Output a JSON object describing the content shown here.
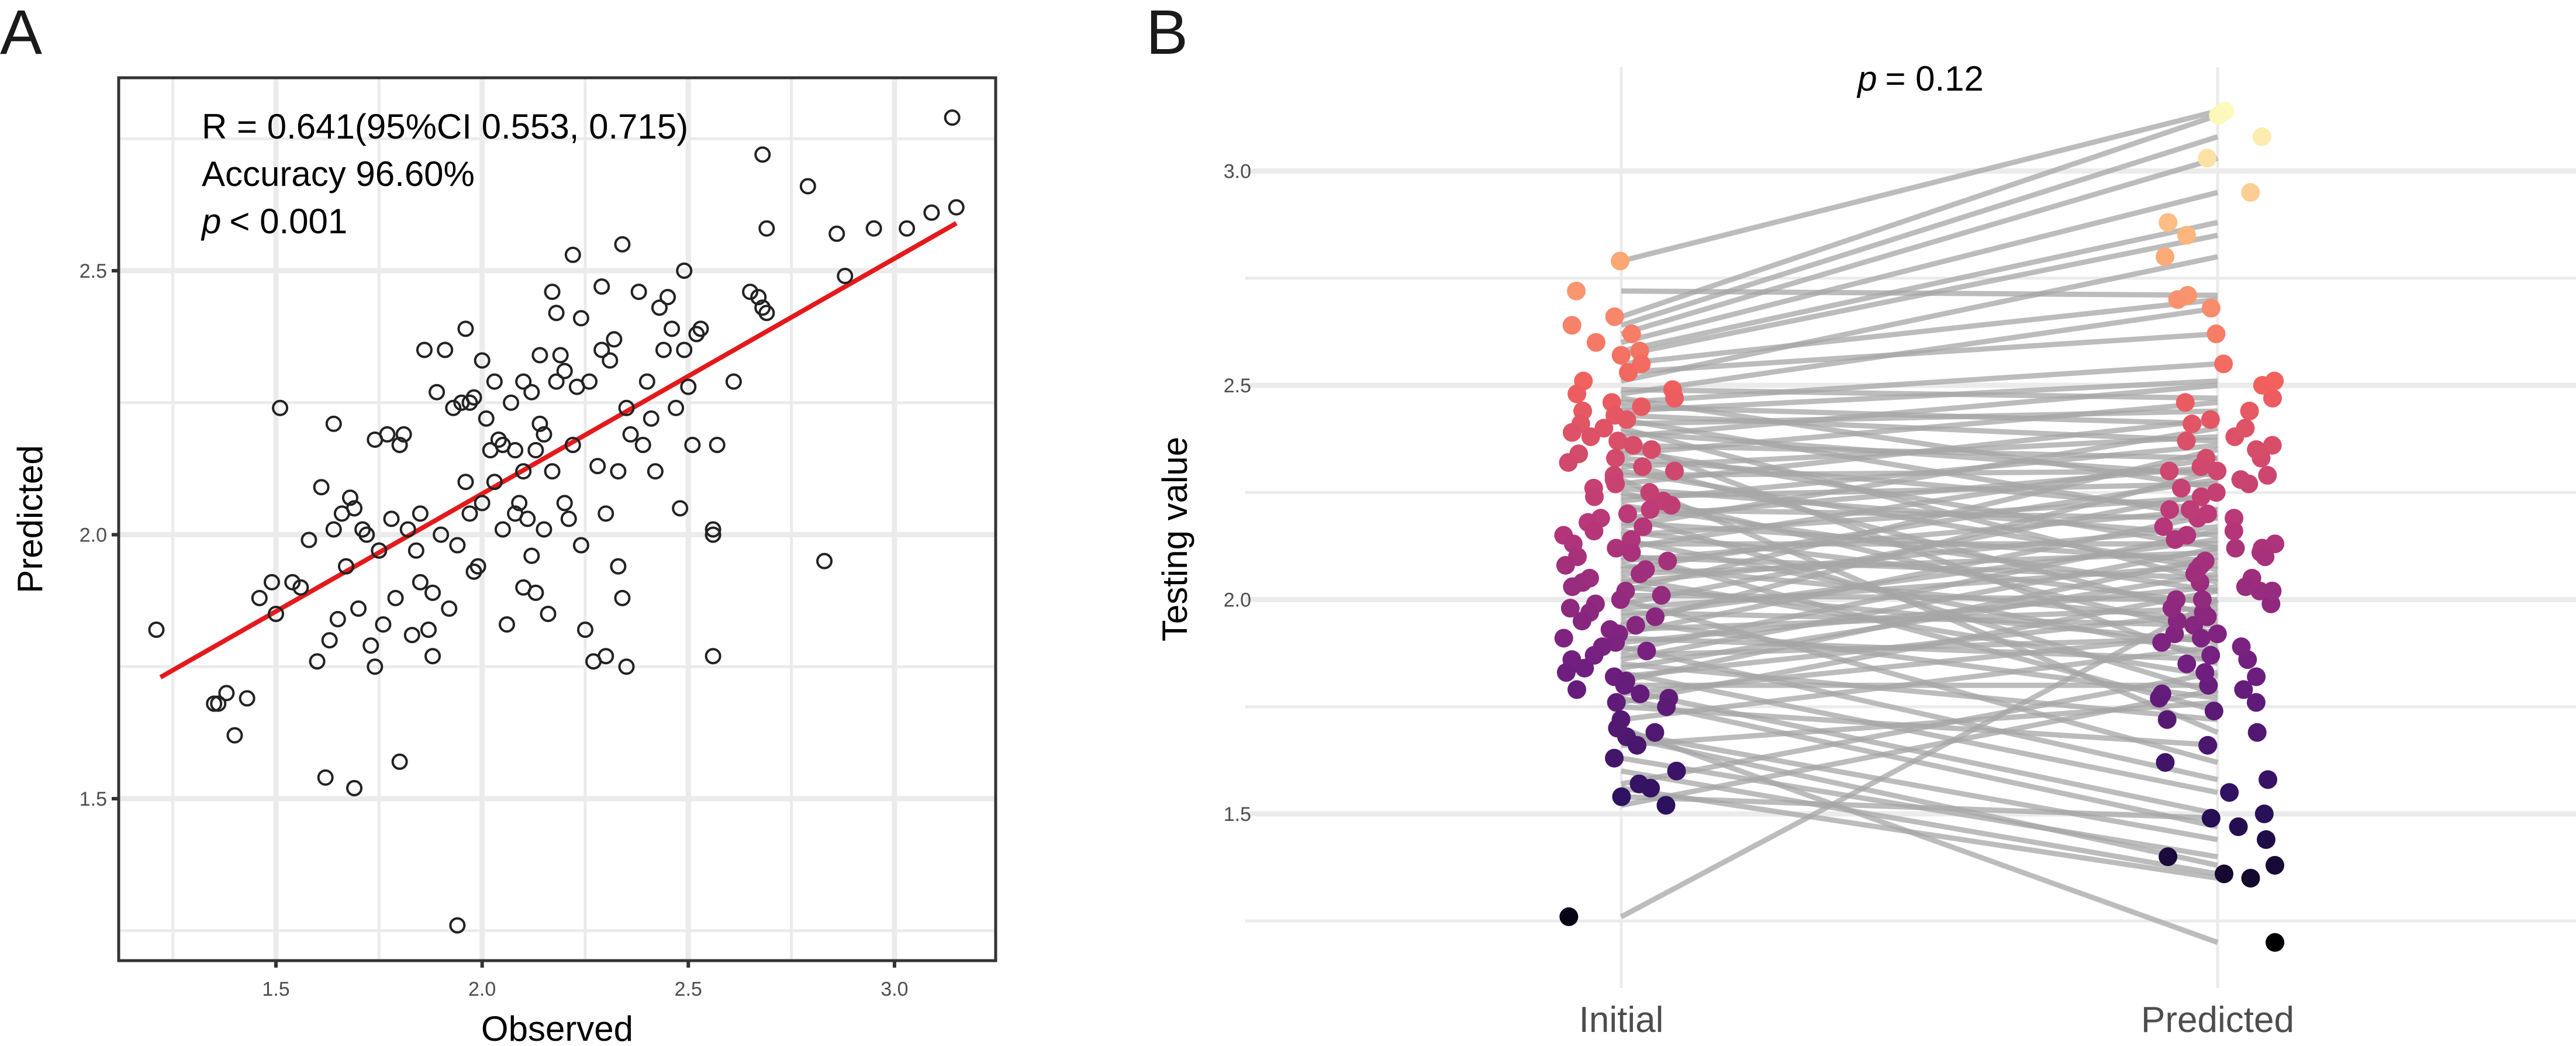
{
  "figure": {
    "panels": [
      "A",
      "B"
    ]
  },
  "chart_data": [
    {
      "panel": "A",
      "type": "scatter",
      "title": "",
      "xlabel": "Observed",
      "ylabel": "Predicted",
      "xlim": [
        1.17,
        3.23
      ],
      "ylim": [
        1.2,
        2.87
      ],
      "xticks": [
        "1.5",
        "2.0",
        "2.5",
        "3.0"
      ],
      "yticks": [
        "1.5",
        "2.0",
        "2.5"
      ],
      "grid": true,
      "marker": "open-circle",
      "fit_line": {
        "color": "#e31a1c",
        "x": [
          1.22,
          3.15
        ],
        "y": [
          1.73,
          2.59
        ]
      },
      "annotations": [
        "R = 0.641(95%CI 0.553, 0.715)",
        "Accuracy 96.60%",
        "< 0.001"
      ],
      "annotation_p_symbol": "p",
      "points": [
        [
          1.21,
          1.82
        ],
        [
          1.35,
          1.68
        ],
        [
          1.36,
          1.68
        ],
        [
          1.38,
          1.7
        ],
        [
          1.4,
          1.62
        ],
        [
          1.43,
          1.69
        ],
        [
          1.46,
          1.88
        ],
        [
          1.49,
          1.91
        ],
        [
          1.5,
          1.85
        ],
        [
          1.51,
          2.24
        ],
        [
          1.54,
          1.91
        ],
        [
          1.56,
          1.9
        ],
        [
          1.58,
          1.99
        ],
        [
          1.6,
          1.76
        ],
        [
          1.61,
          2.09
        ],
        [
          1.62,
          1.54
        ],
        [
          1.63,
          1.8
        ],
        [
          1.64,
          2.21
        ],
        [
          1.64,
          2.01
        ],
        [
          1.65,
          1.84
        ],
        [
          1.66,
          2.04
        ],
        [
          1.67,
          1.94
        ],
        [
          1.68,
          2.07
        ],
        [
          1.69,
          1.52
        ],
        [
          1.69,
          2.05
        ],
        [
          1.7,
          1.86
        ],
        [
          1.71,
          2.01
        ],
        [
          1.72,
          2.0
        ],
        [
          1.73,
          1.79
        ],
        [
          1.74,
          1.75
        ],
        [
          1.74,
          2.18
        ],
        [
          1.75,
          1.97
        ],
        [
          1.76,
          1.83
        ],
        [
          1.77,
          2.19
        ],
        [
          1.78,
          2.03
        ],
        [
          1.79,
          1.88
        ],
        [
          1.8,
          1.57
        ],
        [
          1.8,
          2.17
        ],
        [
          1.81,
          2.19
        ],
        [
          1.82,
          2.01
        ],
        [
          1.83,
          1.81
        ],
        [
          1.84,
          1.97
        ],
        [
          1.85,
          2.04
        ],
        [
          1.85,
          1.91
        ],
        [
          1.86,
          2.35
        ],
        [
          1.87,
          1.82
        ],
        [
          1.88,
          1.77
        ],
        [
          1.88,
          1.89
        ],
        [
          1.89,
          2.27
        ],
        [
          1.9,
          2.0
        ],
        [
          1.91,
          2.35
        ],
        [
          1.92,
          1.86
        ],
        [
          1.93,
          2.24
        ],
        [
          1.94,
          1.26
        ],
        [
          1.94,
          1.98
        ],
        [
          1.95,
          2.25
        ],
        [
          1.96,
          2.1
        ],
        [
          1.96,
          2.39
        ],
        [
          1.97,
          2.25
        ],
        [
          1.97,
          2.04
        ],
        [
          1.98,
          1.93
        ],
        [
          1.98,
          2.26
        ],
        [
          1.99,
          1.94
        ],
        [
          2.0,
          2.33
        ],
        [
          2.0,
          2.06
        ],
        [
          2.01,
          2.22
        ],
        [
          2.02,
          2.16
        ],
        [
          2.03,
          2.29
        ],
        [
          2.03,
          2.1
        ],
        [
          2.04,
          2.18
        ],
        [
          2.05,
          2.17
        ],
        [
          2.05,
          2.01
        ],
        [
          2.06,
          1.83
        ],
        [
          2.07,
          2.25
        ],
        [
          2.08,
          2.16
        ],
        [
          2.08,
          2.04
        ],
        [
          2.09,
          2.06
        ],
        [
          2.1,
          2.29
        ],
        [
          2.1,
          2.12
        ],
        [
          2.1,
          1.9
        ],
        [
          2.11,
          2.03
        ],
        [
          2.12,
          2.27
        ],
        [
          2.12,
          1.96
        ],
        [
          2.13,
          2.16
        ],
        [
          2.13,
          1.89
        ],
        [
          2.14,
          2.34
        ],
        [
          2.14,
          2.21
        ],
        [
          2.15,
          2.19
        ],
        [
          2.15,
          2.01
        ],
        [
          2.16,
          1.85
        ],
        [
          2.17,
          2.46
        ],
        [
          2.17,
          2.12
        ],
        [
          2.18,
          2.42
        ],
        [
          2.18,
          2.29
        ],
        [
          2.19,
          2.34
        ],
        [
          2.2,
          2.06
        ],
        [
          2.2,
          2.31
        ],
        [
          2.21,
          2.03
        ],
        [
          2.22,
          2.53
        ],
        [
          2.22,
          2.17
        ],
        [
          2.23,
          2.28
        ],
        [
          2.24,
          2.41
        ],
        [
          2.24,
          1.98
        ],
        [
          2.25,
          1.82
        ],
        [
          2.26,
          2.29
        ],
        [
          2.27,
          1.76
        ],
        [
          2.28,
          2.13
        ],
        [
          2.29,
          2.47
        ],
        [
          2.29,
          2.35
        ],
        [
          2.3,
          1.77
        ],
        [
          2.3,
          2.04
        ],
        [
          2.31,
          2.33
        ],
        [
          2.32,
          2.37
        ],
        [
          2.33,
          1.94
        ],
        [
          2.33,
          2.12
        ],
        [
          2.34,
          2.55
        ],
        [
          2.34,
          1.88
        ],
        [
          2.35,
          2.24
        ],
        [
          2.35,
          1.75
        ],
        [
          2.36,
          2.19
        ],
        [
          2.38,
          2.46
        ],
        [
          2.39,
          2.17
        ],
        [
          2.4,
          2.29
        ],
        [
          2.41,
          2.22
        ],
        [
          2.42,
          2.12
        ],
        [
          2.43,
          2.43
        ],
        [
          2.44,
          2.35
        ],
        [
          2.45,
          2.45
        ],
        [
          2.46,
          2.39
        ],
        [
          2.47,
          2.24
        ],
        [
          2.48,
          2.05
        ],
        [
          2.49,
          2.5
        ],
        [
          2.49,
          2.35
        ],
        [
          2.5,
          2.28
        ],
        [
          2.51,
          2.17
        ],
        [
          2.52,
          2.38
        ],
        [
          2.53,
          2.39
        ],
        [
          2.56,
          2.0
        ],
        [
          2.56,
          2.01
        ],
        [
          2.56,
          1.77
        ],
        [
          2.57,
          2.17
        ],
        [
          2.61,
          2.29
        ],
        [
          2.65,
          2.46
        ],
        [
          2.67,
          2.45
        ],
        [
          2.68,
          2.43
        ],
        [
          2.69,
          2.42
        ],
        [
          2.68,
          2.72
        ],
        [
          2.69,
          2.58
        ],
        [
          2.79,
          2.66
        ],
        [
          2.83,
          1.95
        ],
        [
          2.86,
          2.57
        ],
        [
          2.88,
          2.49
        ],
        [
          2.95,
          2.58
        ],
        [
          3.03,
          2.58
        ],
        [
          3.09,
          2.61
        ],
        [
          3.14,
          2.79
        ],
        [
          3.15,
          2.62
        ]
      ]
    },
    {
      "panel": "B",
      "type": "line",
      "subtype": "paired-dot",
      "title": "",
      "xlabel": "",
      "ylabel": "Testing value",
      "categories": [
        "Initial",
        "Predicted"
      ],
      "ylim": [
        1.1,
        3.2
      ],
      "yticks": [
        "1.5",
        "2.0",
        "2.5",
        "3.0"
      ],
      "grid": true,
      "annotation": "= 0.12",
      "annotation_p_symbol": "p",
      "color_scale": {
        "name": "magma",
        "stops": [
          "#000004",
          "#2c115f",
          "#721f81",
          "#b73779",
          "#f1605d",
          "#feb078",
          "#fcfdbf"
        ],
        "domain": [
          1.2,
          3.15
        ]
      },
      "line_color": "#a6a6a6",
      "pairs": [
        [
          2.79,
          3.14
        ],
        [
          2.72,
          2.71
        ],
        [
          2.66,
          3.13
        ],
        [
          2.64,
          3.08
        ],
        [
          2.62,
          3.03
        ],
        [
          2.6,
          2.95
        ],
        [
          2.58,
          2.88
        ],
        [
          2.57,
          2.85
        ],
        [
          2.55,
          2.7
        ],
        [
          2.53,
          2.62
        ],
        [
          2.51,
          2.8
        ],
        [
          2.49,
          2.47
        ],
        [
          2.48,
          2.68
        ],
        [
          2.47,
          2.26
        ],
        [
          2.46,
          2.55
        ],
        [
          2.45,
          2.41
        ],
        [
          2.44,
          2.51
        ],
        [
          2.43,
          2.37
        ],
        [
          2.42,
          2.19
        ],
        [
          2.41,
          2.44
        ],
        [
          2.4,
          2.04
        ],
        [
          2.39,
          2.29
        ],
        [
          2.38,
          2.5
        ],
        [
          2.37,
          1.85
        ],
        [
          2.36,
          2.33
        ],
        [
          2.35,
          2.12
        ],
        [
          2.34,
          2.46
        ],
        [
          2.33,
          2.21
        ],
        [
          2.32,
          1.96
        ],
        [
          2.31,
          2.38
        ],
        [
          2.3,
          2.07
        ],
        [
          2.29,
          2.3
        ],
        [
          2.28,
          1.69
        ],
        [
          2.27,
          2.42
        ],
        [
          2.26,
          2.15
        ],
        [
          2.25,
          1.92
        ],
        [
          2.24,
          2.27
        ],
        [
          2.23,
          2.36
        ],
        [
          2.22,
          2.02
        ],
        [
          2.21,
          2.19
        ],
        [
          2.2,
          1.78
        ],
        [
          2.19,
          2.31
        ],
        [
          2.18,
          2.09
        ],
        [
          2.17,
          2.4
        ],
        [
          2.16,
          1.99
        ],
        [
          2.15,
          2.24
        ],
        [
          2.14,
          1.87
        ],
        [
          2.13,
          2.13
        ],
        [
          2.12,
          2.33
        ],
        [
          2.11,
          1.74
        ],
        [
          2.1,
          2.05
        ],
        [
          2.09,
          2.21
        ],
        [
          2.08,
          1.95
        ],
        [
          2.07,
          2.28
        ],
        [
          2.06,
          2.11
        ],
        [
          2.05,
          1.82
        ],
        [
          2.04,
          2.17
        ],
        [
          2.03,
          1.9
        ],
        [
          2.02,
          2.35
        ],
        [
          2.01,
          2.0
        ],
        [
          2.0,
          1.62
        ],
        [
          1.99,
          2.25
        ],
        [
          1.98,
          2.08
        ],
        [
          1.97,
          1.94
        ],
        [
          1.96,
          2.14
        ],
        [
          1.95,
          1.77
        ],
        [
          1.94,
          2.3
        ],
        [
          1.93,
          1.98
        ],
        [
          1.92,
          2.2
        ],
        [
          1.91,
          1.86
        ],
        [
          1.9,
          2.03
        ],
        [
          1.89,
          1.58
        ],
        [
          1.88,
          2.16
        ],
        [
          1.87,
          1.91
        ],
        [
          1.86,
          2.12
        ],
        [
          1.85,
          1.72
        ],
        [
          1.84,
          2.06
        ],
        [
          1.83,
          1.55
        ],
        [
          1.82,
          1.97
        ],
        [
          1.81,
          2.1
        ],
        [
          1.8,
          1.8
        ],
        [
          1.79,
          1.5
        ],
        [
          1.78,
          1.92
        ],
        [
          1.77,
          1.47
        ],
        [
          1.76,
          2.02
        ],
        [
          1.75,
          1.66
        ],
        [
          1.72,
          1.89
        ],
        [
          1.69,
          1.44
        ],
        [
          1.68,
          1.38
        ],
        [
          1.66,
          1.76
        ],
        [
          1.63,
          1.4
        ],
        [
          1.6,
          1.36
        ],
        [
          1.57,
          1.83
        ],
        [
          1.56,
          1.35
        ],
        [
          1.54,
          1.49
        ],
        [
          1.52,
          1.79
        ],
        [
          1.26,
          2.0
        ],
        [
          1.7,
          1.2
        ]
      ]
    }
  ]
}
